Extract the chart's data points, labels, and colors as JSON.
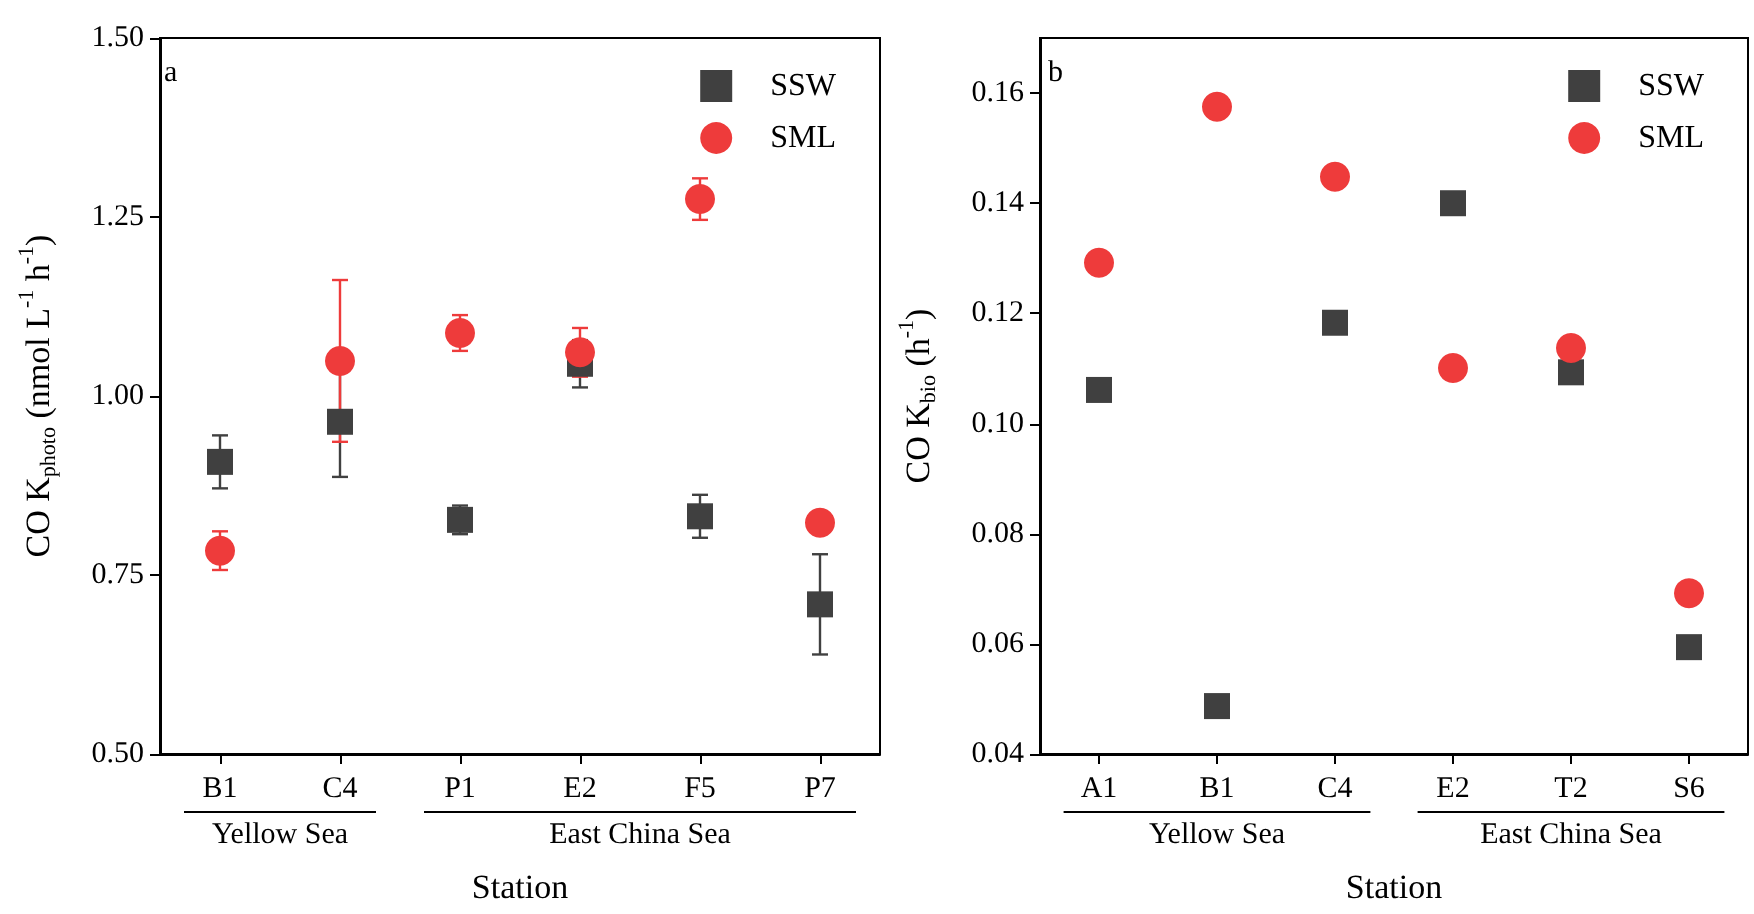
{
  "chart_data": [
    {
      "type": "scatter",
      "title": "a",
      "xlabel": "Station",
      "ylabel": "CO K$_{photo}$ (nmol L$^{-1}$ h$^{-1}$)",
      "categories": [
        "B1",
        "C4",
        "P1",
        "E2",
        "F5",
        "P7"
      ],
      "series": [
        {
          "name": "SSW",
          "color": "#404040",
          "marker": "square",
          "values": [
            0.908,
            0.964,
            0.827,
            1.045,
            0.832,
            0.709
          ],
          "errors": [
            0.037,
            0.077,
            0.02,
            0.033,
            0.03,
            0.07
          ]
        },
        {
          "name": "SML",
          "color": "#ee3b3b",
          "marker": "circle",
          "values": [
            0.784,
            1.049,
            1.088,
            1.061,
            1.275,
            0.823
          ],
          "errors": [
            0.027,
            0.113,
            0.025,
            0.034,
            0.029,
            null
          ]
        }
      ],
      "ylim": [
        0.5,
        1.5
      ],
      "yticks": [
        {
          "value": 0.5,
          "label": "0.50"
        },
        {
          "value": 0.75,
          "label": "0.75"
        },
        {
          "value": 1.0,
          "label": "1.00"
        },
        {
          "value": 1.25,
          "label": "1.25"
        },
        {
          "value": 1.5,
          "label": "1.50"
        }
      ],
      "annotations": [
        "Yellow Sea",
        "East China Sea"
      ],
      "grid": false,
      "legend": "top right"
    },
    {
      "type": "scatter",
      "title": "b",
      "xlabel": "Station",
      "ylabel": "CO K$_{bio}$ (h$^{-1}$)",
      "categories": [
        "A1",
        "B1",
        "C4",
        "E2",
        "T2",
        "S6"
      ],
      "series": [
        {
          "name": "SSW",
          "color": "#404040",
          "marker": "square",
          "values": [
            0.1061,
            0.0487,
            0.1183,
            0.14,
            0.1093,
            0.0594
          ]
        },
        {
          "name": "SML",
          "color": "#ee3b3b",
          "marker": "circle",
          "values": [
            0.1292,
            0.1575,
            0.1448,
            0.1101,
            0.1137,
            0.0692
          ]
        }
      ],
      "ylim": [
        0.04,
        0.17
      ],
      "yticks": [
        0.04,
        0.06,
        0.08,
        {
          "value": 0.1,
          "label": "0.10"
        },
        0.12,
        0.14,
        0.16
      ],
      "annotations": [
        "Yellow Sea",
        "East China Sea"
      ],
      "grid": false,
      "legend": "top right"
    }
  ]
}
